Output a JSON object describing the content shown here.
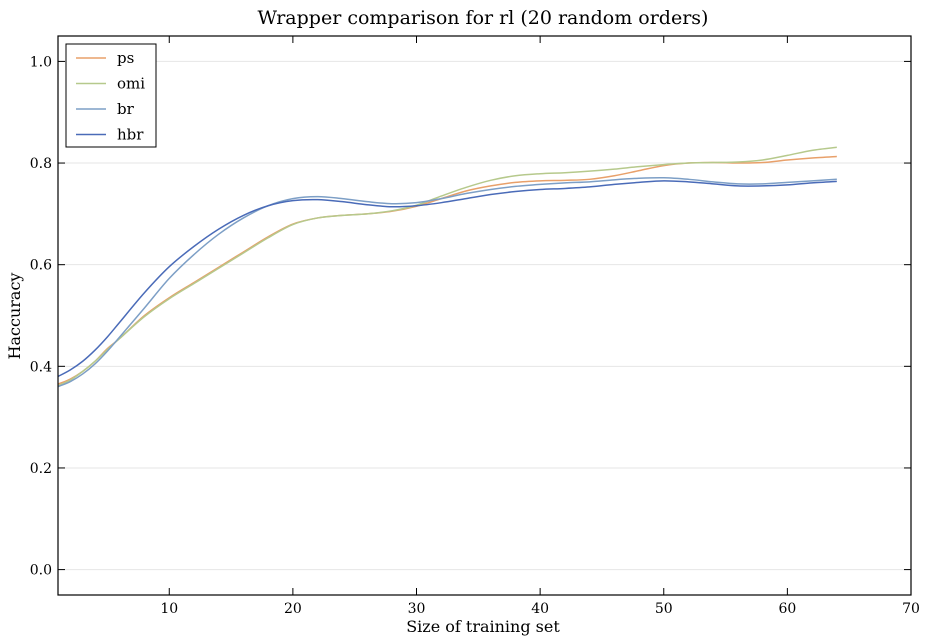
{
  "chart_data": {
    "type": "line",
    "title": "Wrapper comparison for rl (20 random orders)",
    "xlabel": "Size of training set",
    "ylabel": "Haccuracy",
    "xlim": [
      1,
      70
    ],
    "ylim": [
      -0.05,
      1.05
    ],
    "xticks": [
      "10",
      "20",
      "30",
      "40",
      "50",
      "60",
      "70"
    ],
    "yticks": [
      "0.0",
      "0.2",
      "0.4",
      "0.6",
      "0.8",
      "1.0"
    ],
    "grid": "horizontal",
    "legend_position": "top-left",
    "series": [
      {
        "name": "ps",
        "color": "#e8a06a",
        "x": [
          1,
          2,
          3,
          4,
          5,
          6,
          8,
          10,
          12,
          14,
          16,
          18,
          20,
          22,
          24,
          26,
          28,
          30,
          32,
          34,
          36,
          38,
          40,
          42,
          44,
          46,
          48,
          50,
          52,
          54,
          56,
          58,
          60,
          62,
          64
        ],
        "y": [
          0.365,
          0.375,
          0.39,
          0.41,
          0.435,
          0.455,
          0.5,
          0.535,
          0.565,
          0.595,
          0.625,
          0.655,
          0.68,
          0.692,
          0.697,
          0.7,
          0.705,
          0.715,
          0.73,
          0.745,
          0.755,
          0.762,
          0.765,
          0.766,
          0.768,
          0.775,
          0.785,
          0.795,
          0.8,
          0.801,
          0.8,
          0.801,
          0.806,
          0.81,
          0.813
        ]
      },
      {
        "name": "omi",
        "color": "#b6c98c",
        "x": [
          1,
          2,
          3,
          4,
          5,
          6,
          8,
          10,
          12,
          14,
          16,
          18,
          20,
          22,
          24,
          26,
          28,
          30,
          32,
          34,
          36,
          38,
          40,
          42,
          44,
          46,
          48,
          50,
          52,
          54,
          56,
          58,
          60,
          62,
          64
        ],
        "y": [
          0.362,
          0.373,
          0.39,
          0.41,
          0.433,
          0.455,
          0.498,
          0.533,
          0.563,
          0.593,
          0.623,
          0.653,
          0.679,
          0.692,
          0.697,
          0.7,
          0.706,
          0.717,
          0.735,
          0.752,
          0.766,
          0.775,
          0.779,
          0.781,
          0.784,
          0.788,
          0.793,
          0.797,
          0.8,
          0.801,
          0.802,
          0.806,
          0.815,
          0.825,
          0.831
        ]
      },
      {
        "name": "br",
        "color": "#7d9fc6",
        "x": [
          1,
          2,
          3,
          4,
          5,
          6,
          8,
          10,
          12,
          14,
          16,
          18,
          20,
          22,
          24,
          26,
          28,
          30,
          32,
          34,
          36,
          38,
          40,
          42,
          44,
          46,
          48,
          50,
          52,
          54,
          56,
          58,
          60,
          62,
          64
        ],
        "y": [
          0.36,
          0.37,
          0.385,
          0.405,
          0.43,
          0.458,
          0.515,
          0.573,
          0.62,
          0.66,
          0.692,
          0.716,
          0.73,
          0.734,
          0.73,
          0.724,
          0.72,
          0.722,
          0.73,
          0.74,
          0.748,
          0.754,
          0.758,
          0.761,
          0.763,
          0.767,
          0.77,
          0.771,
          0.768,
          0.763,
          0.759,
          0.759,
          0.762,
          0.765,
          0.768
        ]
      },
      {
        "name": "hbr",
        "color": "#4a6bb8",
        "x": [
          1,
          2,
          3,
          4,
          5,
          6,
          8,
          10,
          12,
          14,
          16,
          18,
          20,
          22,
          24,
          26,
          28,
          30,
          32,
          34,
          36,
          38,
          40,
          42,
          44,
          46,
          48,
          50,
          52,
          54,
          56,
          58,
          60,
          62,
          64
        ],
        "y": [
          0.38,
          0.393,
          0.41,
          0.432,
          0.458,
          0.487,
          0.545,
          0.596,
          0.636,
          0.67,
          0.697,
          0.716,
          0.726,
          0.728,
          0.724,
          0.718,
          0.714,
          0.716,
          0.722,
          0.73,
          0.738,
          0.744,
          0.748,
          0.75,
          0.753,
          0.758,
          0.762,
          0.765,
          0.763,
          0.759,
          0.755,
          0.755,
          0.757,
          0.761,
          0.764
        ]
      }
    ]
  }
}
